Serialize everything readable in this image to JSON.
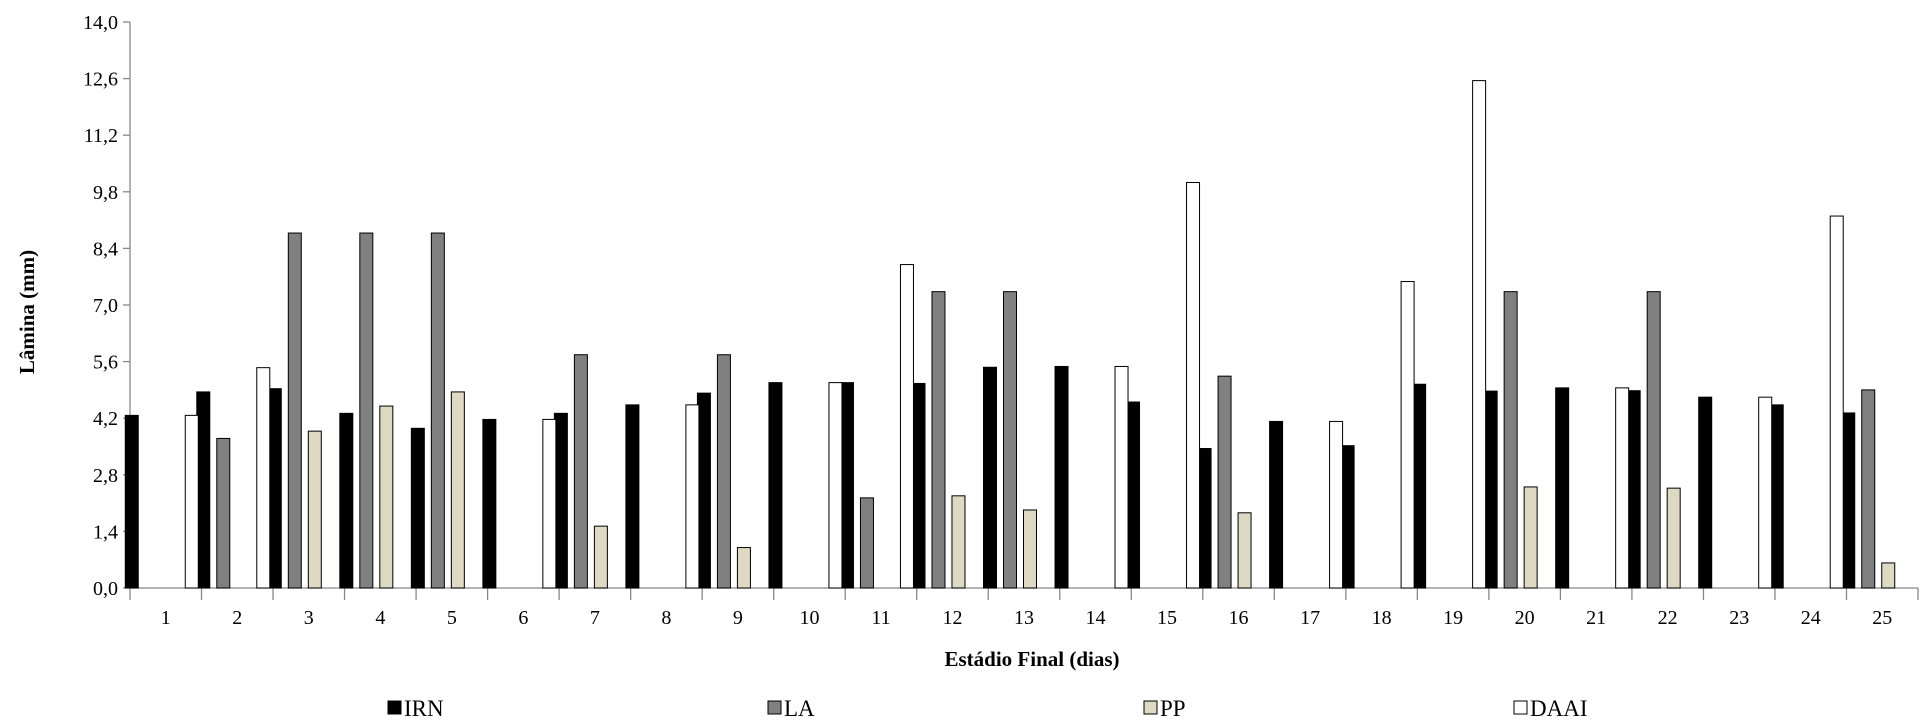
{
  "chart_data": {
    "type": "bar",
    "title": "",
    "xlabel": "Estádio Final (dias)",
    "ylabel": "Lâmina (mm)",
    "ylim": [
      0,
      14
    ],
    "yticks": [
      "0,0",
      "1,4",
      "2,8",
      "4,2",
      "5,6",
      "7,0",
      "8,4",
      "9,8",
      "11,2",
      "12,6",
      "14,0"
    ],
    "categories": [
      "1",
      "2",
      "3",
      "4",
      "5",
      "6",
      "7",
      "8",
      "9",
      "10",
      "11",
      "12",
      "13",
      "14",
      "15",
      "16",
      "17",
      "18",
      "19",
      "20",
      "21",
      "22",
      "23",
      "24",
      "25"
    ],
    "grid": false,
    "legend_position": "bottom",
    "series": [
      {
        "name": "IRN",
        "color": "#000000",
        "values": [
          4.27,
          4.85,
          4.93,
          4.32,
          3.95,
          4.17,
          4.32,
          4.53,
          4.82,
          5.08,
          5.08,
          5.06,
          5.46,
          5.48,
          4.6,
          3.45,
          4.12,
          3.52,
          5.04,
          4.87,
          4.95,
          4.88,
          4.72,
          4.53,
          4.33
        ]
      },
      {
        "name": "LA",
        "color": "#808080",
        "values": [
          0,
          3.7,
          8.78,
          8.78,
          8.78,
          0,
          5.77,
          0,
          5.77,
          0,
          2.23,
          7.33,
          7.33,
          0,
          0,
          5.24,
          0,
          0,
          0,
          7.33,
          0,
          7.33,
          0,
          0,
          4.9
        ]
      },
      {
        "name": "PP",
        "color": "#ddd9c3",
        "values": [
          0,
          0,
          3.88,
          4.5,
          4.85,
          0,
          1.53,
          0,
          1.0,
          0,
          0,
          2.28,
          1.93,
          0,
          0,
          1.86,
          0,
          0,
          0,
          2.5,
          0,
          2.47,
          0,
          0,
          0.62
        ]
      },
      {
        "name": "DAAI",
        "color": "#ffffff",
        "values": [
          4.27,
          5.45,
          0,
          0,
          0,
          4.17,
          0,
          4.53,
          0,
          5.08,
          8.0,
          0,
          0,
          5.48,
          10.03,
          0,
          4.12,
          7.58,
          12.55,
          0,
          4.95,
          0,
          4.72,
          9.2,
          0
        ]
      }
    ]
  }
}
